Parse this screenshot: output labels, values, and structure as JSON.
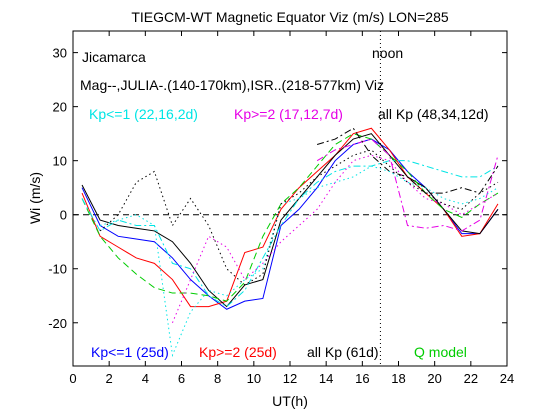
{
  "chart_data": {
    "type": "line",
    "title": "TIEGCM-WT Magnetic Equator Viz (m/s) LON=285",
    "xlabel": "UT(h)",
    "ylabel": "Wi (m/s)",
    "xlim": [
      0,
      24
    ],
    "ylim": [
      -28,
      34
    ],
    "xticks": [
      0,
      2,
      4,
      6,
      8,
      10,
      12,
      14,
      16,
      18,
      20,
      22,
      24
    ],
    "yticks": [
      -20,
      -10,
      0,
      10,
      20,
      30
    ],
    "grid": false,
    "annotations": {
      "station": "Jicamarca",
      "subtitle": "Mag--,JULIA-.(140-170km),ISR..(218-577km) Viz",
      "noon": "noon",
      "noon_x": 17
    },
    "legend_top": [
      {
        "label": "Kp<=1 (22,16,2d)",
        "color": "#00e5e5"
      },
      {
        "label": "Kp>=2 (17,12,7d)",
        "color": "#e600e6"
      },
      {
        "label": "all Kp (48,34,12d)",
        "color": "#000000"
      }
    ],
    "legend_bottom": [
      {
        "label": "Kp<=1 (25d)",
        "color": "#0000ff"
      },
      {
        "label": "Kp>=2 (25d)",
        "color": "#ff0000"
      },
      {
        "label": "all Kp (61d)",
        "color": "#000000"
      },
      {
        "label": "Q model",
        "color": "#00cc00"
      }
    ],
    "series": [
      {
        "color": "#0000ff",
        "style": "solid",
        "x": [
          0.5,
          1.5,
          2.5,
          3.5,
          4.5,
          5.5,
          6.5,
          7.5,
          8.5,
          9.5,
          10.5,
          11.5,
          12.5,
          13.5,
          14.5,
          15.5,
          16.5,
          17.5,
          18.5,
          19.5,
          20.5,
          21.5,
          22.5,
          23.5
        ],
        "y": [
          5,
          -2,
          -4,
          -4.5,
          -5,
          -8,
          -12,
          -15,
          -17.5,
          -16,
          -15.5,
          -2,
          1,
          5,
          10,
          13,
          14,
          12,
          8,
          5,
          1,
          -3.5,
          -3.5,
          1
        ]
      },
      {
        "color": "#ff0000",
        "style": "solid",
        "x": [
          0.5,
          1.5,
          2.5,
          3.5,
          4.5,
          5.5,
          6.5,
          7.5,
          8.5,
          9.5,
          10.5,
          11.5,
          12.5,
          13.5,
          14.5,
          15.5,
          16.5,
          17.5,
          18.5,
          19.5,
          20.5,
          21.5,
          22.5,
          23.5
        ],
        "y": [
          4,
          -4,
          -6,
          -8,
          -9,
          -12,
          -17,
          -17,
          -16,
          -7,
          -6,
          1,
          5,
          8,
          11,
          15,
          16,
          12,
          7,
          4,
          1,
          -4,
          -3.5,
          2
        ]
      },
      {
        "color": "#000000",
        "style": "solid",
        "x": [
          0.5,
          1.5,
          2.5,
          3.5,
          4.5,
          5.5,
          6.5,
          7.5,
          8.5,
          9.5,
          10.5,
          11.5,
          12.5,
          13.5,
          14.5,
          15.5,
          16.5,
          17.5,
          18.5,
          19.5,
          20.5,
          21.5,
          22.5,
          23.5
        ],
        "y": [
          5.5,
          -1,
          -2,
          -2.5,
          -3,
          -5,
          -9,
          -14,
          -17,
          -13,
          -12,
          -1,
          3,
          7,
          11,
          14,
          15,
          11,
          7,
          5,
          1,
          -3,
          -3.5,
          1
        ]
      },
      {
        "color": "#00cc00",
        "style": "dashed",
        "x": [
          0.5,
          1.5,
          2.5,
          3.5,
          4.5,
          5.5,
          6.5,
          7.5,
          8.5,
          9.5,
          10.5,
          11.5,
          12.5,
          13.5,
          14.5,
          15.5,
          16.5,
          17.5,
          18.5,
          19.5,
          20.5,
          21.5,
          22.5,
          23.5
        ],
        "y": [
          3,
          -4,
          -8,
          -11,
          -13.5,
          -14.5,
          -14.5,
          -15,
          -16,
          -12.5,
          -4,
          2,
          5,
          9,
          13,
          15,
          14,
          11,
          8,
          4,
          1,
          -0.5,
          2,
          4
        ]
      },
      {
        "color": "#00e5e5",
        "style": "dashdot",
        "x": [
          0.5,
          1.5,
          2.5,
          3.5,
          4.5,
          5.5,
          6.5,
          7.5,
          8.5,
          9.5,
          10.5,
          11.5,
          12.5,
          13.5,
          14.5,
          15.5,
          16.5,
          17.5,
          18.5,
          19.5,
          20.5,
          21.5,
          22.5,
          23.5
        ],
        "y": [
          3,
          -3,
          -1,
          -2,
          -2,
          -9,
          -10,
          -15,
          -17,
          -14,
          -8,
          -2,
          3,
          6,
          8,
          9,
          9,
          10,
          10,
          9,
          8,
          7,
          7,
          9
        ]
      },
      {
        "color": "#e600e6",
        "style": "dashdot",
        "x": [
          13.5,
          14.5,
          15.5,
          16.5,
          17.5,
          18.5,
          19.5,
          20.5,
          21.5,
          22.5,
          23.5
        ],
        "y": [
          10,
          12,
          13,
          14,
          11,
          -2,
          -2.5,
          -2,
          -3,
          -1,
          11
        ]
      },
      {
        "color": "#000000",
        "style": "dashdot",
        "x": [
          13.5,
          14.5,
          15.5,
          16.5,
          17.5,
          18.5,
          19.5,
          20.5,
          21.5,
          22.5,
          23.5
        ],
        "y": [
          13,
          14,
          16,
          11,
          8,
          7,
          4,
          4,
          5,
          4,
          9
        ]
      },
      {
        "color": "#00e5e5",
        "style": "dotted",
        "x": [
          1.5,
          2.5,
          3.5,
          4.5,
          5.5,
          6.5,
          7.5,
          8.5,
          9.5,
          10.5,
          11.5,
          12.5,
          13.5,
          14.5,
          15.5,
          16.5,
          17.5,
          18.5,
          19.5,
          20.5,
          21.5,
          22.5,
          23.5
        ],
        "y": [
          -2,
          -1,
          0,
          -2,
          -26,
          -18,
          -14,
          -15,
          -12,
          -10,
          2,
          3,
          5,
          6,
          7,
          9,
          8,
          6,
          5,
          3,
          2,
          3,
          5
        ]
      },
      {
        "color": "#e600e6",
        "style": "dotted",
        "x": [
          5.5,
          6.5,
          7.5,
          8.5,
          9.5,
          10.5,
          11.5,
          12.5,
          13.5,
          14.5,
          15.5,
          16.5,
          17.5,
          18.5,
          19.5,
          20.5,
          21.5,
          22.5,
          23.5
        ],
        "y": [
          -20,
          -12,
          -4,
          -6,
          -12,
          -9,
          -5,
          -2,
          1,
          6,
          10,
          11,
          10,
          6,
          3,
          2,
          0,
          2,
          4
        ]
      },
      {
        "color": "#000000",
        "style": "dotted",
        "x": [
          1.5,
          2.5,
          3.5,
          4.5,
          5.5,
          6.5,
          7.5,
          8.5,
          9.5,
          10.5,
          11.5,
          12.5,
          13.5,
          14.5,
          15.5,
          16.5,
          17.5,
          18.5,
          19.5,
          20.5,
          21.5,
          22.5,
          23.5
        ],
        "y": [
          -3,
          0,
          6,
          8,
          -2,
          3,
          -2,
          -10,
          -13,
          -11,
          2,
          4,
          7,
          9,
          11,
          12,
          9,
          6,
          4,
          2,
          1,
          4,
          6
        ]
      }
    ]
  }
}
